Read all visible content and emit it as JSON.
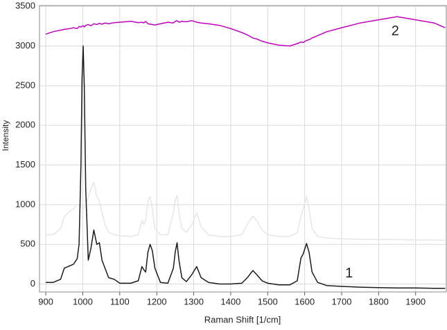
{
  "chart_data": {
    "type": "line",
    "xlabel": "Raman Shift [1/cm]",
    "ylabel": "Intensity",
    "x": [
      900,
      920,
      940,
      950,
      960,
      975,
      985,
      990,
      995,
      998,
      1001,
      1004,
      1008,
      1015,
      1022,
      1030,
      1038,
      1045,
      1052,
      1060,
      1070,
      1085,
      1100,
      1130,
      1150,
      1160,
      1165,
      1170,
      1176,
      1182,
      1188,
      1195,
      1210,
      1230,
      1245,
      1250,
      1255,
      1260,
      1268,
      1280,
      1295,
      1308,
      1320,
      1340,
      1370,
      1400,
      1430,
      1445,
      1460,
      1470,
      1485,
      1500,
      1530,
      1560,
      1580,
      1590,
      1596,
      1605,
      1612,
      1620,
      1635,
      1660,
      1700,
      1750,
      1800,
      1850,
      1900,
      1950,
      1980
    ],
    "series": [
      {
        "color": "#e6e6e6",
        "values": [
          620,
          620,
          700,
          850,
          900,
          950,
          1000,
          1000,
          980,
          960,
          950,
          960,
          1000,
          1100,
          1200,
          1280,
          1100,
          1050,
          900,
          750,
          650,
          620,
          610,
          600,
          620,
          800,
          750,
          800,
          1050,
          1100,
          950,
          700,
          620,
          620,
          900,
          1050,
          1120,
          900,
          700,
          650,
          750,
          900,
          720,
          620,
          600,
          600,
          620,
          750,
          860,
          800,
          680,
          620,
          600,
          600,
          650,
          850,
          950,
          1100,
          950,
          700,
          600,
          580,
          570,
          565,
          560,
          560,
          555,
          555,
          550
        ]
      },
      {
        "color": "#c000c0",
        "values": [
          3150,
          3180,
          3200,
          3210,
          3215,
          3230,
          3220,
          3245,
          3240,
          3250,
          3255,
          3240,
          3260,
          3270,
          3255,
          3280,
          3270,
          3285,
          3275,
          3290,
          3280,
          3295,
          3300,
          3310,
          3295,
          3300,
          3290,
          3310,
          3280,
          3275,
          3270,
          3265,
          3280,
          3300,
          3290,
          3310,
          3320,
          3300,
          3310,
          3305,
          3320,
          3300,
          3290,
          3280,
          3260,
          3220,
          3170,
          3140,
          3100,
          3090,
          3060,
          3040,
          3010,
          3000,
          3030,
          3050,
          3045,
          3070,
          3080,
          3100,
          3130,
          3180,
          3230,
          3290,
          3330,
          3370,
          3330,
          3290,
          3230
        ]
      },
      {
        "color": "#1a1a1a",
        "values": [
          20,
          20,
          60,
          200,
          220,
          250,
          320,
          500,
          1500,
          2600,
          3000,
          2500,
          1200,
          300,
          450,
          680,
          500,
          520,
          300,
          200,
          80,
          60,
          10,
          10,
          40,
          220,
          180,
          150,
          400,
          500,
          420,
          200,
          20,
          10,
          200,
          400,
          520,
          300,
          80,
          30,
          120,
          220,
          80,
          20,
          0,
          0,
          10,
          80,
          170,
          120,
          40,
          10,
          -10,
          -10,
          40,
          330,
          380,
          510,
          400,
          150,
          20,
          -20,
          -30,
          -40,
          -45,
          -50,
          -50,
          -55,
          -55
        ]
      }
    ],
    "annotations": [
      {
        "text": "1",
        "x": 1720,
        "y": 130
      },
      {
        "text": "2",
        "x": 1845,
        "y": 3180
      }
    ],
    "xlim": [
      883,
      1983
    ],
    "ylim": [
      -100,
      3510
    ],
    "xticks": [
      900,
      1000,
      1100,
      1200,
      1300,
      1400,
      1500,
      1600,
      1700,
      1800,
      1900
    ],
    "yticks": [
      0,
      500,
      1000,
      1500,
      2000,
      2500,
      3000,
      3500
    ],
    "grid": true
  }
}
